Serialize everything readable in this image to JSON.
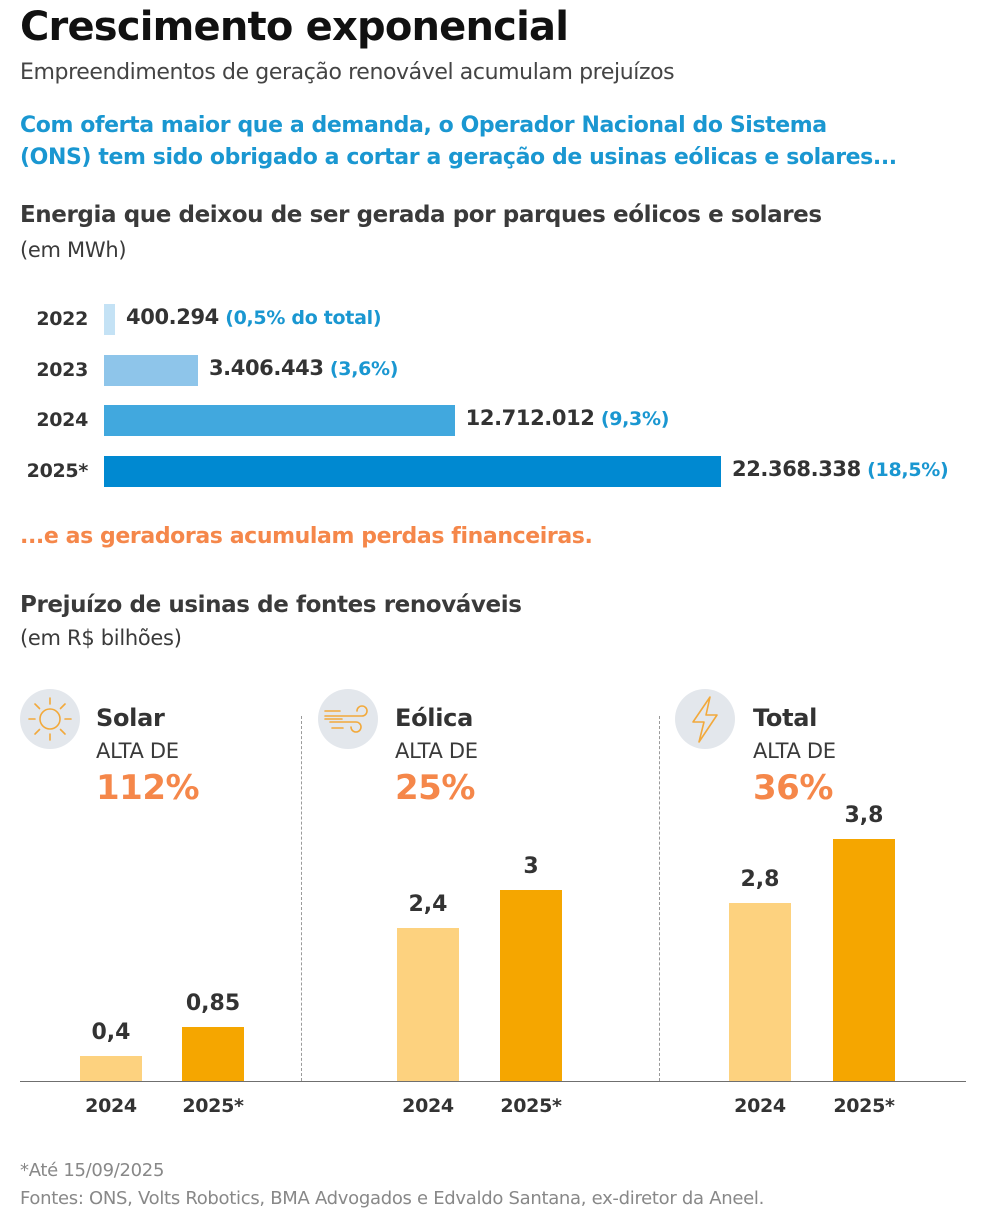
{
  "header": {
    "title": "Crescimento exponencial",
    "subtitle": "Empreendimentos de geração renovável acumulam prejuízos",
    "lead_line1": "Com oferta maior que a demanda, o Operador Nacional do Sistema",
    "lead_line2": "(ONS) tem sido obrigado a cortar a geração de usinas eólicas e solares..."
  },
  "colors": {
    "accent_blue": "#1a97d1",
    "accent_orange": "#f5874a",
    "hbar_2022": "#c4e2f5",
    "hbar_2023": "#8ec5ea",
    "hbar_2024": "#41a8de",
    "hbar_2025": "#0089d1",
    "vbar_2024": "#fdd27f",
    "vbar_2025": "#f5a600",
    "icon_bg": "#e3e7ec",
    "icon_stroke": "#f2a93b"
  },
  "chart_data": [
    {
      "type": "bar",
      "orientation": "horizontal",
      "title": "Energia que deixou de ser gerada por parques eólicos e solares",
      "unit": "(em MWh)",
      "categories": [
        "2022",
        "2023",
        "2024",
        "2025*"
      ],
      "values": [
        400294,
        3406443,
        12712012,
        22368338
      ],
      "value_labels": [
        "400.294",
        "3.406.443",
        "12.712.012",
        "22.368.338"
      ],
      "share_labels": [
        "(0,5% do total)",
        "(3,6%)",
        "(9,3%)",
        "(18,5%)"
      ],
      "xlim": [
        0,
        22368338
      ],
      "grid": false
    },
    {
      "type": "bar",
      "orientation": "vertical",
      "title": "Prejuízo de usinas de fontes renováveis",
      "unit": "(em R$ bilhões)",
      "ylim": [
        0,
        3.8
      ],
      "grid": false,
      "groups": [
        {
          "name": "Solar",
          "icon": "sun-icon",
          "growth_prefix": "ALTA DE",
          "growth": "112%",
          "categories": [
            "2024",
            "2025*"
          ],
          "values": [
            0.4,
            0.85
          ],
          "value_labels": [
            "0,4",
            "0,85"
          ]
        },
        {
          "name": "Eólica",
          "icon": "wind-icon",
          "growth_prefix": "ALTA DE",
          "growth": "25%",
          "categories": [
            "2024",
            "2025*"
          ],
          "values": [
            2.4,
            3
          ],
          "value_labels": [
            "2,4",
            "3"
          ]
        },
        {
          "name": "Total",
          "icon": "lightning-icon",
          "growth_prefix": "ALTA DE",
          "growth": "36%",
          "categories": [
            "2024",
            "2025*"
          ],
          "values": [
            2.8,
            3.8
          ],
          "value_labels": [
            "2,8",
            "3,8"
          ]
        }
      ]
    }
  ],
  "transition": "...e as geradoras acumulam perdas financeiras.",
  "footer": {
    "note": "*Até 15/09/2025",
    "sources": "Fontes: ONS, Volts Robotics, BMA Advogados e Edvaldo Santana, ex-diretor da Aneel."
  }
}
